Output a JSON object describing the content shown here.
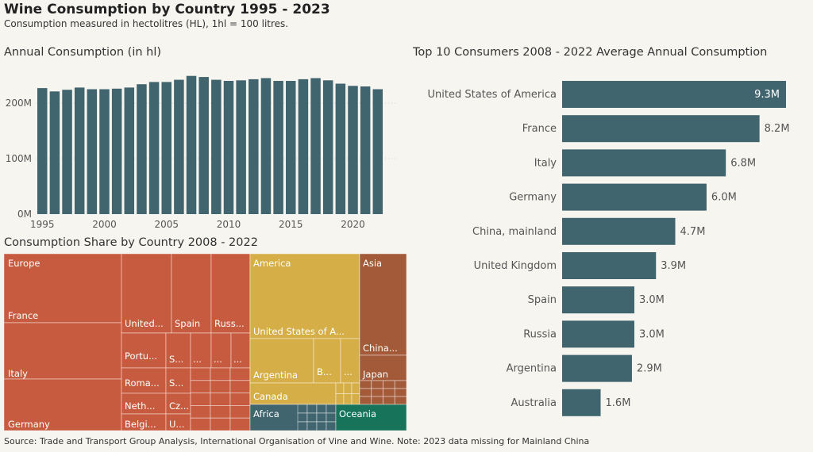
{
  "header": {
    "title": "Wine Consumption by Country 1995 - 2023",
    "subtitle": "Consumption measured in hectolitres (HL), 1hl = 100 litres."
  },
  "footer": {
    "source": "Source: Trade and Transport Group Analysis, International Organisation of Vine and Wine. Note: 2023 data missing for Mainland China"
  },
  "colors": {
    "bar": "#41656e",
    "background": "#f7f5f0",
    "europe": "#c75b3f",
    "america": "#d6ae47",
    "asia": "#a35a38",
    "africa": "#41656e",
    "oceania": "#17735a"
  },
  "chart_data": [
    {
      "type": "bar",
      "title": "Annual Consumption (in hl)",
      "x": [
        1995,
        1996,
        1997,
        1998,
        1999,
        2000,
        2001,
        2002,
        2003,
        2004,
        2005,
        2006,
        2007,
        2008,
        2009,
        2010,
        2011,
        2012,
        2013,
        2014,
        2015,
        2016,
        2017,
        2018,
        2019,
        2020,
        2021,
        2022
      ],
      "values": [
        227,
        221,
        224,
        228,
        225,
        225,
        226,
        228,
        234,
        238,
        238,
        242,
        249,
        247,
        242,
        240,
        241,
        243,
        245,
        240,
        240,
        243,
        245,
        241,
        235,
        231,
        230,
        225
      ],
      "unit": "M hl",
      "yticks": [
        "0M",
        "100M",
        "200M"
      ],
      "ytick_values": [
        0,
        100,
        200
      ],
      "xticks": [
        "1995",
        "2000",
        "2005",
        "2010",
        "2015",
        "2020"
      ],
      "xtick_values": [
        1995,
        2000,
        2005,
        2010,
        2015,
        2020
      ],
      "ylim": [
        0,
        260
      ],
      "grid": "horizontal dotted"
    },
    {
      "type": "bar",
      "orientation": "horizontal",
      "title": "Top 10 Consumers 2008 - 2022 Average Annual Consumption",
      "categories": [
        "United States of America",
        "France",
        "Italy",
        "Germany",
        "China, mainland",
        "United Kingdom",
        "Spain",
        "Russia",
        "Argentina",
        "Australia"
      ],
      "values": [
        9.3,
        8.2,
        6.8,
        6.0,
        4.7,
        3.9,
        3.0,
        3.0,
        2.9,
        1.6
      ],
      "labels": [
        "9.3M",
        "8.2M",
        "6.8M",
        "6.0M",
        "4.7M",
        "3.9M",
        "3.0M",
        "3.0M",
        "2.9M",
        "1.6M"
      ],
      "unit": "M hl",
      "xlim": [
        0,
        9.3
      ]
    },
    {
      "type": "treemap",
      "title": "Consumption Share by Country 2008 - 2022",
      "groups": [
        {
          "name": "Europe",
          "color": "#c75b3f",
          "labels": [
            "France",
            "Italy",
            "Germany",
            "United...",
            "Spain",
            "Russ...",
            "Portu...",
            "S...",
            "...",
            "...",
            "...",
            "Roma...",
            "S...",
            "Neth...",
            "Cz...",
            "Belgi...",
            "U..."
          ]
        },
        {
          "name": "America",
          "color": "#d6ae47",
          "labels": [
            "United States of A...",
            "Argentina",
            "B...",
            "...",
            "Canada"
          ]
        },
        {
          "name": "Asia",
          "color": "#a35a38",
          "labels": [
            "China...",
            "Japan"
          ]
        },
        {
          "name": "Africa",
          "color": "#41656e",
          "labels": []
        },
        {
          "name": "Oceania",
          "color": "#17735a",
          "labels": []
        }
      ]
    }
  ]
}
